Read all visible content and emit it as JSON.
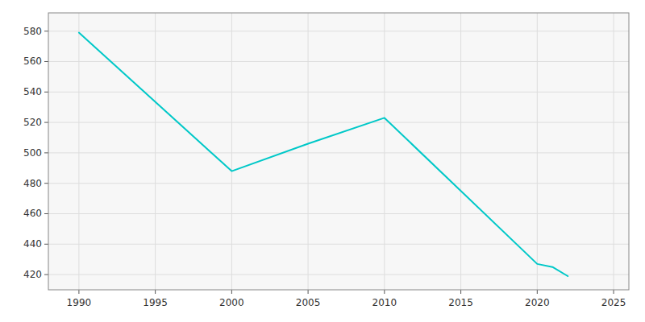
{
  "chart_data": {
    "type": "line",
    "x": [
      1990,
      2000,
      2005,
      2010,
      2020,
      2021,
      2022
    ],
    "values": [
      579,
      488,
      506,
      523,
      427,
      425,
      419
    ],
    "color": "#00C8C8",
    "xlim": [
      1988,
      2026
    ],
    "ylim": [
      410,
      592
    ],
    "xticks": [
      1990,
      1995,
      2000,
      2005,
      2010,
      2015,
      2020,
      2025
    ],
    "yticks": [
      420,
      440,
      460,
      480,
      500,
      520,
      540,
      560,
      580
    ],
    "grid": true
  }
}
